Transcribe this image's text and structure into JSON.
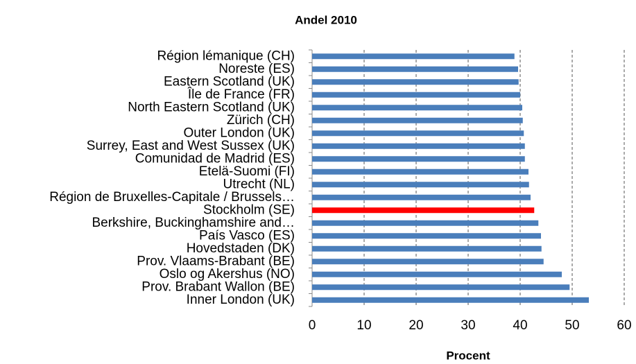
{
  "chart_data": {
    "type": "bar",
    "orientation": "horizontal",
    "title": "Andel 2010",
    "x_label": "Procent",
    "categories": [
      "Région lémanique (CH)",
      "Noreste (ES)",
      "Eastern Scotland (UK)",
      "Île de France (FR)",
      "North Eastern Scotland (UK)",
      "Zürich (CH)",
      "Outer London (UK)",
      "Surrey, East and West Sussex (UK)",
      "Comunidad de Madrid (ES)",
      "Etelä-Suomi (FI)",
      "Utrecht (NL)",
      "Région de Bruxelles-Capitale / Brussels…",
      "Stockholm (SE)",
      "Berkshire, Buckinghamshire and…",
      "País Vasco (ES)",
      "Hovedstaden (DK)",
      "Prov. Vlaams-Brabant (BE)",
      "Oslo og Akershus (NO)",
      "Prov. Brabant Wallon (BE)",
      "Inner London (UK)"
    ],
    "values": [
      38.9,
      39.6,
      39.7,
      40.0,
      40.4,
      40.5,
      40.7,
      40.9,
      40.9,
      41.6,
      41.7,
      42.0,
      42.7,
      43.5,
      44.0,
      44.1,
      44.5,
      48.0,
      49.5,
      53.2
    ],
    "colors": [
      "#4a7ebb",
      "#4a7ebb",
      "#4a7ebb",
      "#4a7ebb",
      "#4a7ebb",
      "#4a7ebb",
      "#4a7ebb",
      "#4a7ebb",
      "#4a7ebb",
      "#4a7ebb",
      "#4a7ebb",
      "#4a7ebb",
      "#ff0000",
      "#4a7ebb",
      "#4a7ebb",
      "#4a7ebb",
      "#4a7ebb",
      "#4a7ebb",
      "#4a7ebb",
      "#4a7ebb"
    ],
    "xlim": [
      0,
      60
    ],
    "xticks": [
      0,
      10,
      20,
      30,
      40,
      50,
      60
    ],
    "grid": true
  }
}
